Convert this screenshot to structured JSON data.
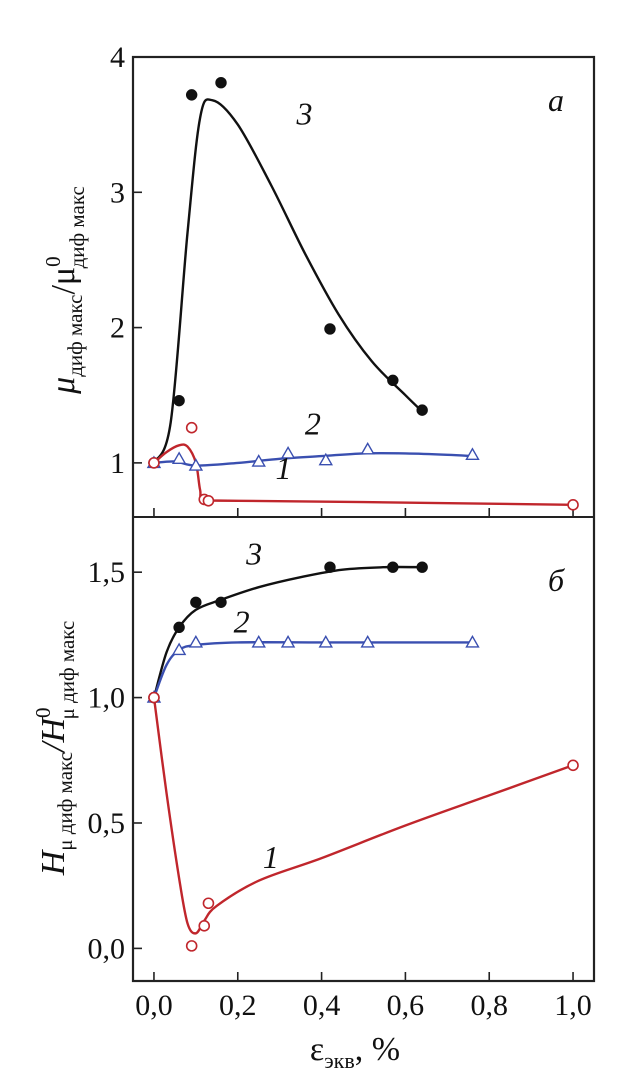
{
  "chart_data": [
    {
      "panel": "a",
      "type": "scatter",
      "panel_label": "а",
      "title": "",
      "ylabel": {
        "main": "μ",
        "main_sub": "диф макс",
        "slash": "/μ",
        "den_sup": "0",
        "den_sub": "диф макс"
      },
      "xlabel": "",
      "xlim": [
        -0.05,
        1.05
      ],
      "ylim": [
        0.6,
        4.0
      ],
      "xticks": [
        0.0,
        0.2,
        0.4,
        0.6,
        0.8,
        1.0
      ],
      "yticks": [
        1,
        2,
        3,
        4
      ],
      "ytick_labels": [
        "1",
        "2",
        "3",
        "4"
      ],
      "grid": false,
      "series": [
        {
          "name": "3",
          "color": "#111111",
          "marker": "filled-circle",
          "points": [
            [
              0.0,
              1.0
            ],
            [
              0.06,
              1.46
            ],
            [
              0.09,
              3.72
            ],
            [
              0.16,
              3.81
            ],
            [
              0.42,
              1.99
            ],
            [
              0.57,
              1.61
            ],
            [
              0.64,
              1.39
            ]
          ],
          "curve": [
            [
              0.0,
              1.0
            ],
            [
              0.04,
              1.3
            ],
            [
              0.08,
              2.7
            ],
            [
              0.11,
              3.55
            ],
            [
              0.14,
              3.68
            ],
            [
              0.2,
              3.5
            ],
            [
              0.28,
              3.05
            ],
            [
              0.36,
              2.55
            ],
            [
              0.44,
              2.1
            ],
            [
              0.52,
              1.75
            ],
            [
              0.6,
              1.5
            ],
            [
              0.64,
              1.38
            ]
          ],
          "label_pos": [
            0.34,
            3.5
          ]
        },
        {
          "name": "2",
          "color": "#3a4fb0",
          "marker": "open-triangle",
          "points": [
            [
              0.0,
              1.0
            ],
            [
              0.06,
              1.03
            ],
            [
              0.1,
              0.98
            ],
            [
              0.25,
              1.01
            ],
            [
              0.32,
              1.07
            ],
            [
              0.41,
              1.02
            ],
            [
              0.51,
              1.1
            ],
            [
              0.76,
              1.06
            ]
          ],
          "curve": [
            [
              0.0,
              1.0
            ],
            [
              0.05,
              1.01
            ],
            [
              0.1,
              0.98
            ],
            [
              0.2,
              1.0
            ],
            [
              0.3,
              1.03
            ],
            [
              0.4,
              1.05
            ],
            [
              0.5,
              1.07
            ],
            [
              0.6,
              1.07
            ],
            [
              0.7,
              1.06
            ],
            [
              0.76,
              1.05
            ]
          ],
          "label_pos": [
            0.36,
            1.21
          ]
        },
        {
          "name": "1",
          "color": "#c0262c",
          "marker": "open-circle",
          "points": [
            [
              0.0,
              1.0
            ],
            [
              0.09,
              1.26
            ],
            [
              0.12,
              0.73
            ],
            [
              0.13,
              0.72
            ],
            [
              1.0,
              0.69
            ]
          ],
          "curve": [
            [
              0.0,
              1.0
            ],
            [
              0.03,
              1.08
            ],
            [
              0.06,
              1.13
            ],
            [
              0.08,
              1.12
            ],
            [
              0.1,
              1.0
            ],
            [
              0.11,
              0.8
            ],
            [
              0.12,
              0.73
            ],
            [
              0.2,
              0.72
            ],
            [
              0.5,
              0.71
            ],
            [
              1.0,
              0.69
            ]
          ],
          "label_pos": [
            0.29,
            0.88
          ]
        }
      ]
    },
    {
      "panel": "b",
      "type": "scatter",
      "panel_label": "б",
      "title": "",
      "ylabel": {
        "main": "H",
        "main_sub": "μ диф макс",
        "slash": "/H",
        "den_sup": "0",
        "den_sub": "μ диф макс"
      },
      "xlabel": {
        "main": "ε",
        "main_sub": "экв",
        "suffix": ", %"
      },
      "xlim": [
        -0.05,
        1.05
      ],
      "ylim": [
        -0.13,
        1.72
      ],
      "xticks": [
        0.0,
        0.2,
        0.4,
        0.6,
        0.8,
        1.0
      ],
      "xtick_labels": [
        "0,0",
        "0,2",
        "0,4",
        "0,6",
        "0,8",
        "1,0"
      ],
      "yticks": [
        0.0,
        0.5,
        1.0,
        1.5
      ],
      "ytick_labels": [
        "0,0",
        "0,5",
        "1,0",
        "1,5"
      ],
      "grid": false,
      "series": [
        {
          "name": "3",
          "color": "#111111",
          "marker": "filled-circle",
          "points": [
            [
              0.0,
              1.0
            ],
            [
              0.06,
              1.28
            ],
            [
              0.1,
              1.38
            ],
            [
              0.16,
              1.38
            ],
            [
              0.42,
              1.52
            ],
            [
              0.57,
              1.52
            ],
            [
              0.64,
              1.52
            ]
          ],
          "curve": [
            [
              0.0,
              1.0
            ],
            [
              0.03,
              1.18
            ],
            [
              0.06,
              1.28
            ],
            [
              0.1,
              1.35
            ],
            [
              0.16,
              1.39
            ],
            [
              0.25,
              1.44
            ],
            [
              0.35,
              1.48
            ],
            [
              0.45,
              1.51
            ],
            [
              0.55,
              1.52
            ],
            [
              0.64,
              1.52
            ]
          ],
          "label_pos": [
            0.22,
            1.53
          ]
        },
        {
          "name": "2",
          "color": "#3a4fb0",
          "marker": "open-triangle",
          "points": [
            [
              0.0,
              1.0
            ],
            [
              0.06,
              1.19
            ],
            [
              0.1,
              1.22
            ],
            [
              0.25,
              1.22
            ],
            [
              0.32,
              1.22
            ],
            [
              0.41,
              1.22
            ],
            [
              0.51,
              1.22
            ],
            [
              0.76,
              1.22
            ]
          ],
          "curve": [
            [
              0.0,
              1.0
            ],
            [
              0.03,
              1.13
            ],
            [
              0.06,
              1.19
            ],
            [
              0.1,
              1.21
            ],
            [
              0.2,
              1.22
            ],
            [
              0.4,
              1.22
            ],
            [
              0.6,
              1.22
            ],
            [
              0.76,
              1.22
            ]
          ],
          "label_pos": [
            0.19,
            1.26
          ]
        },
        {
          "name": "1",
          "color": "#c0262c",
          "marker": "open-circle",
          "points": [
            [
              0.0,
              1.0
            ],
            [
              0.09,
              0.01
            ],
            [
              0.12,
              0.09
            ],
            [
              0.13,
              0.18
            ],
            [
              1.0,
              0.73
            ]
          ],
          "curve": [
            [
              0.0,
              1.0
            ],
            [
              0.03,
              0.62
            ],
            [
              0.06,
              0.28
            ],
            [
              0.08,
              0.1
            ],
            [
              0.1,
              0.06
            ],
            [
              0.12,
              0.11
            ],
            [
              0.15,
              0.17
            ],
            [
              0.25,
              0.27
            ],
            [
              0.4,
              0.36
            ],
            [
              0.6,
              0.49
            ],
            [
              0.8,
              0.61
            ],
            [
              1.0,
              0.73
            ]
          ],
          "label_pos": [
            0.26,
            0.32
          ]
        }
      ]
    }
  ]
}
